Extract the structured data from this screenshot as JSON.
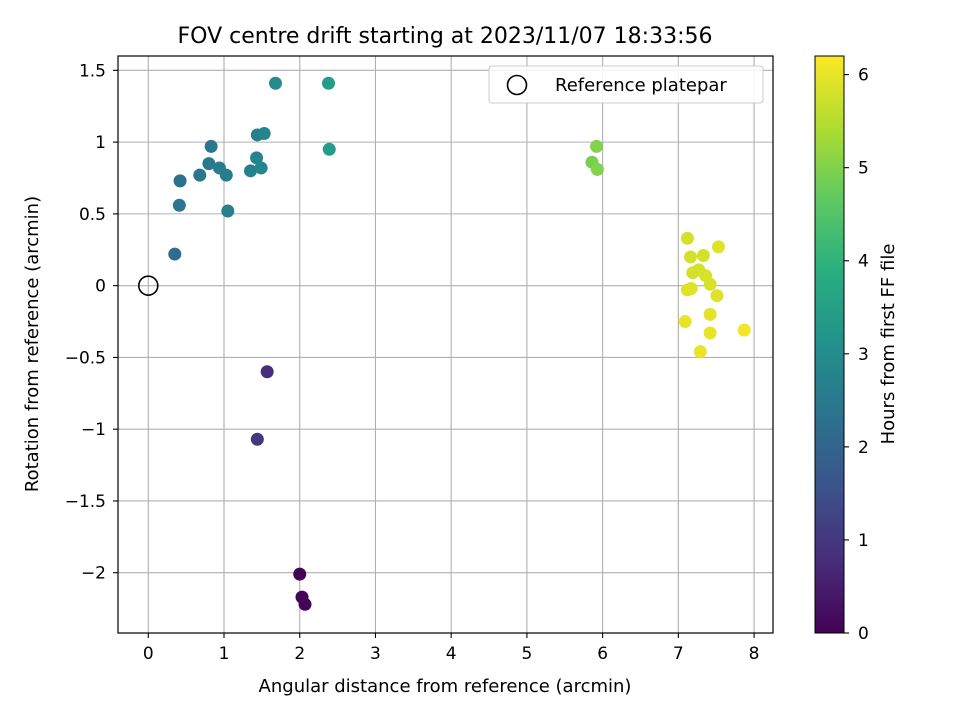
{
  "chart_data": {
    "type": "scatter",
    "title": "FOV centre drift starting at 2023/11/07 18:33:56",
    "xlabel": "Angular distance from reference (arcmin)",
    "ylabel": "Rotation from reference (arcmin)",
    "xlim": [
      -0.4,
      8.25
    ],
    "ylim": [
      -2.42,
      1.6
    ],
    "xticks": [
      0,
      1,
      2,
      3,
      4,
      5,
      6,
      7,
      8
    ],
    "yticks": [
      -2.0,
      -1.5,
      -1.0,
      -0.5,
      0.0,
      0.5,
      1.0,
      1.5
    ],
    "grid": true,
    "legend": {
      "position": "top-right",
      "label": "Reference platepar"
    },
    "reference_point": {
      "x": 0,
      "y": 0
    },
    "colorbar": {
      "label": "Hours from first FF file",
      "range": [
        0,
        6.2
      ],
      "ticks": [
        0,
        1,
        2,
        3,
        4,
        5,
        6
      ],
      "colormap": "viridis"
    },
    "points": [
      {
        "x": 2.0,
        "y": -2.01,
        "h": 0.05
      },
      {
        "x": 2.03,
        "y": -2.17,
        "h": 0.05
      },
      {
        "x": 2.07,
        "y": -2.22,
        "h": 0.05
      },
      {
        "x": 1.44,
        "y": -1.07,
        "h": 1.0
      },
      {
        "x": 1.57,
        "y": -0.6,
        "h": 0.8
      },
      {
        "x": 0.35,
        "y": 0.22,
        "h": 2.2
      },
      {
        "x": 0.41,
        "y": 0.56,
        "h": 2.4
      },
      {
        "x": 0.42,
        "y": 0.73,
        "h": 2.3
      },
      {
        "x": 0.68,
        "y": 0.77,
        "h": 2.4
      },
      {
        "x": 0.8,
        "y": 0.85,
        "h": 2.5
      },
      {
        "x": 0.83,
        "y": 0.97,
        "h": 2.4
      },
      {
        "x": 0.94,
        "y": 0.82,
        "h": 2.6
      },
      {
        "x": 1.03,
        "y": 0.77,
        "h": 2.6
      },
      {
        "x": 1.05,
        "y": 0.52,
        "h": 2.7
      },
      {
        "x": 1.35,
        "y": 0.8,
        "h": 2.7
      },
      {
        "x": 1.43,
        "y": 0.89,
        "h": 2.8
      },
      {
        "x": 1.44,
        "y": 1.05,
        "h": 2.7
      },
      {
        "x": 1.49,
        "y": 0.82,
        "h": 2.8
      },
      {
        "x": 1.53,
        "y": 1.06,
        "h": 2.8
      },
      {
        "x": 1.68,
        "y": 1.41,
        "h": 3.0
      },
      {
        "x": 2.38,
        "y": 1.41,
        "h": 3.4
      },
      {
        "x": 2.39,
        "y": 0.95,
        "h": 3.4
      },
      {
        "x": 5.86,
        "y": 0.86,
        "h": 4.9
      },
      {
        "x": 5.92,
        "y": 0.97,
        "h": 5.0
      },
      {
        "x": 5.93,
        "y": 0.81,
        "h": 5.0
      },
      {
        "x": 7.12,
        "y": 0.33,
        "h": 5.8
      },
      {
        "x": 7.16,
        "y": 0.2,
        "h": 5.8
      },
      {
        "x": 7.19,
        "y": 0.09,
        "h": 5.8
      },
      {
        "x": 7.27,
        "y": 0.11,
        "h": 5.8
      },
      {
        "x": 7.33,
        "y": 0.21,
        "h": 5.8
      },
      {
        "x": 7.36,
        "y": 0.07,
        "h": 5.85
      },
      {
        "x": 7.42,
        "y": 0.01,
        "h": 5.85
      },
      {
        "x": 7.53,
        "y": 0.27,
        "h": 5.9
      },
      {
        "x": 7.12,
        "y": -0.03,
        "h": 5.9
      },
      {
        "x": 7.17,
        "y": -0.02,
        "h": 5.9
      },
      {
        "x": 7.51,
        "y": -0.07,
        "h": 5.9
      },
      {
        "x": 7.42,
        "y": -0.2,
        "h": 5.95
      },
      {
        "x": 7.09,
        "y": -0.25,
        "h": 6.0
      },
      {
        "x": 7.42,
        "y": -0.33,
        "h": 6.0
      },
      {
        "x": 7.29,
        "y": -0.46,
        "h": 6.0
      },
      {
        "x": 7.87,
        "y": -0.31,
        "h": 6.1
      }
    ]
  }
}
